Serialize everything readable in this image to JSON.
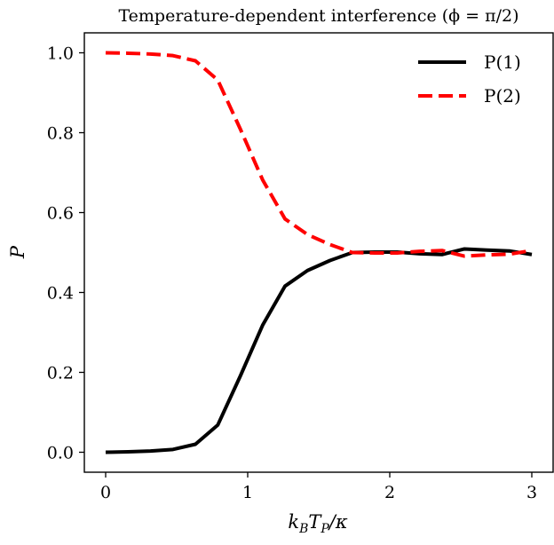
{
  "chart_data": {
    "type": "line",
    "title": "Temperature-dependent interference (ϕ = π/2)",
    "xlabel": "kʙTₚ/κ",
    "xlabel_parts": {
      "k": "k",
      "kB": "B",
      "T": "T",
      "TP": "P",
      "rest": "/κ"
    },
    "ylabel": "P",
    "xlim": [
      -0.15,
      3.15
    ],
    "ylim": [
      -0.05,
      1.05
    ],
    "xticks": [
      0,
      1,
      2,
      3
    ],
    "xtick_labels": [
      "0",
      "1",
      "2",
      "3"
    ],
    "yticks": [
      0.0,
      0.2,
      0.4,
      0.6,
      0.8,
      1.0
    ],
    "ytick_labels": [
      "0.0",
      "0.2",
      "0.4",
      "0.6",
      "0.8",
      "1.0"
    ],
    "grid": false,
    "legend_position": "top-right",
    "x": [
      0.0,
      0.158,
      0.316,
      0.474,
      0.632,
      0.789,
      0.947,
      1.105,
      1.263,
      1.421,
      1.579,
      1.737,
      1.895,
      2.053,
      2.211,
      2.368,
      2.526,
      2.684,
      2.842,
      3.0
    ],
    "series": [
      {
        "name": "P(1)",
        "color": "#000000",
        "style": "solid",
        "values": [
          0.0,
          0.001,
          0.003,
          0.007,
          0.02,
          0.068,
          0.19,
          0.318,
          0.416,
          0.455,
          0.48,
          0.5,
          0.501,
          0.501,
          0.497,
          0.495,
          0.509,
          0.506,
          0.504,
          0.495
        ]
      },
      {
        "name": "P(2)",
        "color": "#ff0000",
        "style": "dashed",
        "values": [
          1.0,
          0.999,
          0.997,
          0.993,
          0.98,
          0.932,
          0.81,
          0.682,
          0.584,
          0.545,
          0.52,
          0.5,
          0.499,
          0.499,
          0.503,
          0.505,
          0.491,
          0.494,
          0.496,
          0.505
        ]
      }
    ]
  }
}
